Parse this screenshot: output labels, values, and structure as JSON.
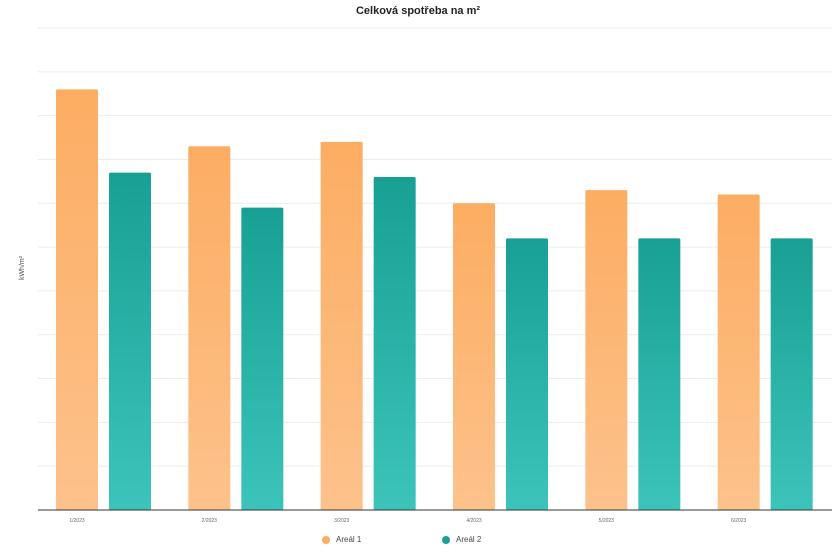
{
  "chart_data": {
    "type": "bar",
    "title": "Celková spotřeba na m²",
    "ylabel": "kWh/m²",
    "xlabel": "",
    "categories": [
      "1/2023",
      "2/2023",
      "3/2023",
      "4/2023",
      "5/2023",
      "6/2023"
    ],
    "series": [
      {
        "name": "Areál 1",
        "values": [
          9.6,
          8.3,
          8.4,
          7.0,
          7.3,
          7.2
        ],
        "color_top": "#fcad62",
        "color_bottom": "#fdc28b"
      },
      {
        "name": "Areál 2",
        "values": [
          7.7,
          6.9,
          7.6,
          6.2,
          6.2,
          6.2
        ],
        "color_top": "#17a093",
        "color_bottom": "#3cc4bb"
      }
    ],
    "ylim": [
      0,
      11
    ],
    "grid": true,
    "legend_position": "bottom-center"
  }
}
